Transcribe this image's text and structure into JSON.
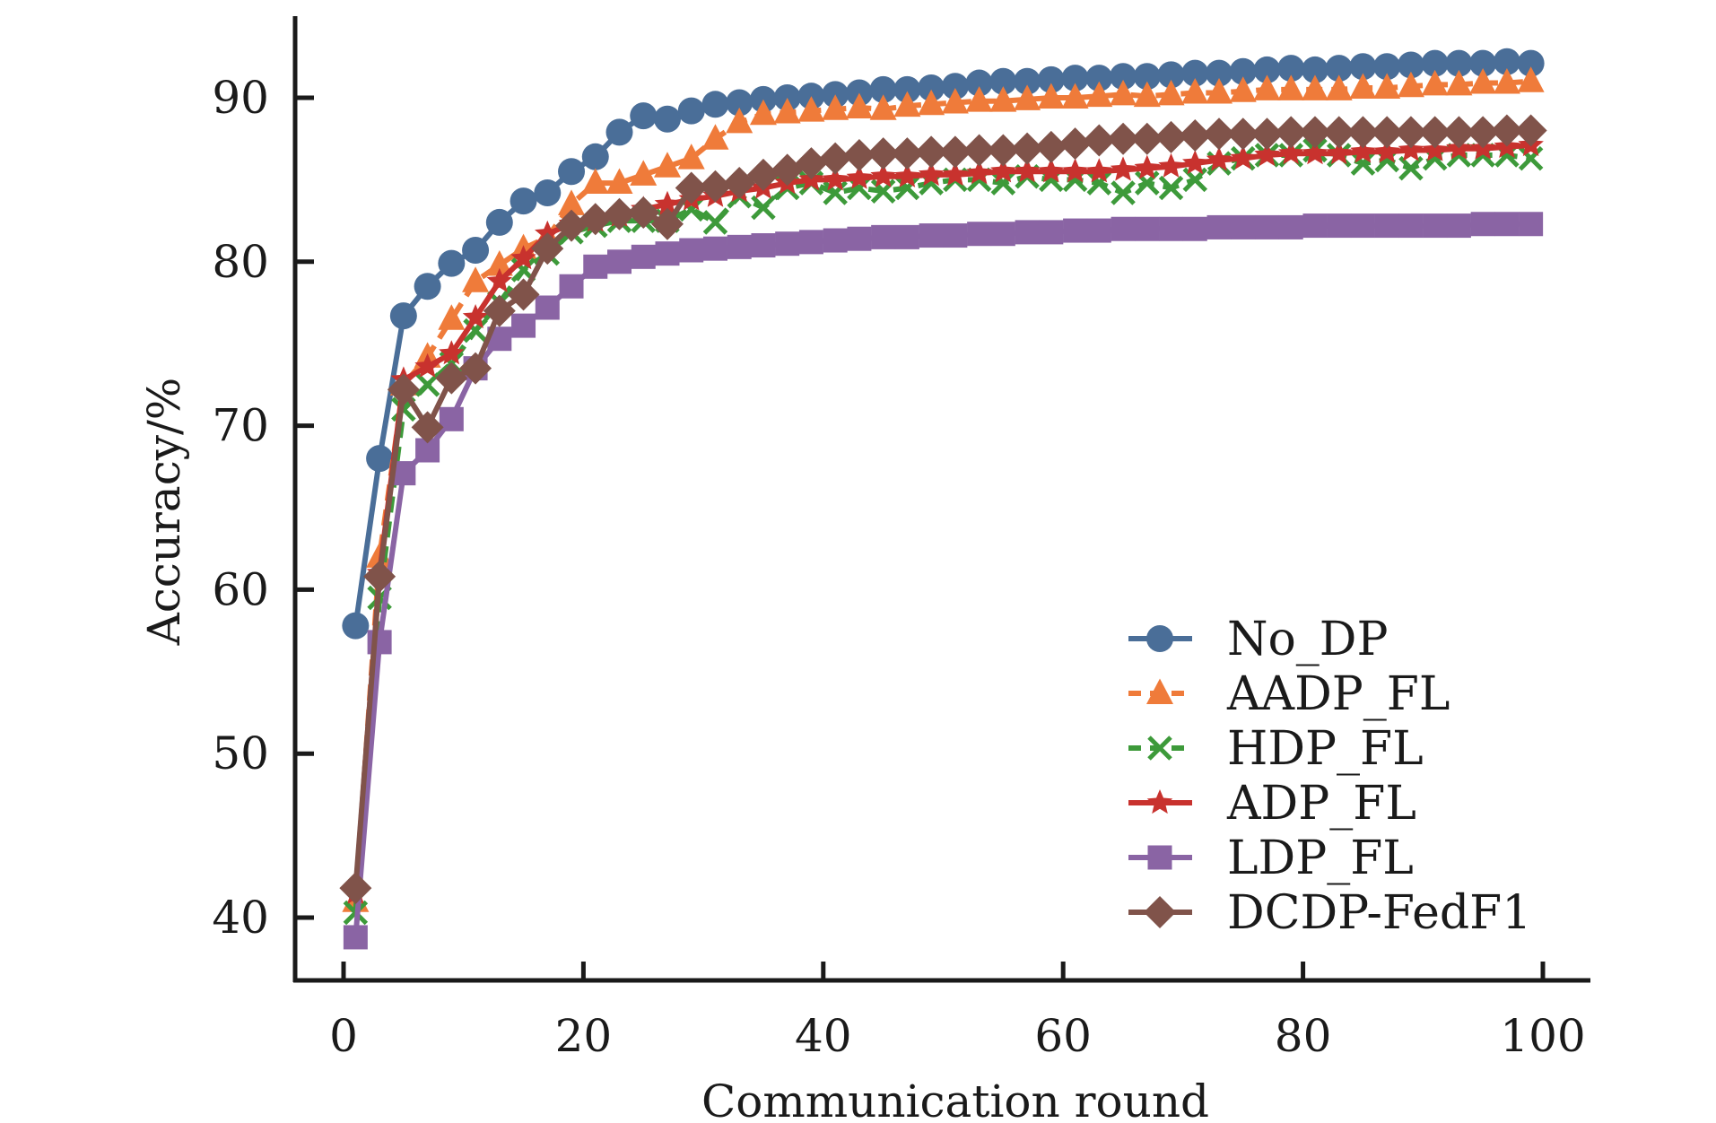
{
  "chart_data": {
    "type": "line",
    "title": "",
    "xlabel": "Communication round",
    "ylabel": "Accuracy/%",
    "xlim": [
      -4,
      104
    ],
    "ylim": [
      36,
      95
    ],
    "xticks": [
      0,
      20,
      40,
      60,
      80,
      100
    ],
    "yticks": [
      40,
      50,
      60,
      70,
      80,
      90
    ],
    "grid": false,
    "legend_position": "bottom-right",
    "x": [
      1,
      3,
      5,
      7,
      9,
      11,
      13,
      15,
      17,
      19,
      21,
      23,
      25,
      27,
      29,
      31,
      33,
      35,
      37,
      39,
      41,
      43,
      45,
      47,
      49,
      51,
      53,
      55,
      57,
      59,
      61,
      63,
      65,
      67,
      69,
      71,
      73,
      75,
      77,
      79,
      81,
      83,
      85,
      87,
      89,
      91,
      93,
      95,
      97,
      99
    ],
    "series": [
      {
        "name": "No_DP",
        "color": "#4a6e98",
        "marker": "circle",
        "dash": "solid",
        "values": [
          57.8,
          68.0,
          76.7,
          78.5,
          79.9,
          80.7,
          82.4,
          83.7,
          84.2,
          85.5,
          86.4,
          87.9,
          88.9,
          88.7,
          89.2,
          89.6,
          89.7,
          89.9,
          90.0,
          90.1,
          90.2,
          90.3,
          90.5,
          90.5,
          90.6,
          90.7,
          90.9,
          91.0,
          91.0,
          91.1,
          91.2,
          91.2,
          91.3,
          91.3,
          91.4,
          91.5,
          91.5,
          91.6,
          91.7,
          91.8,
          91.7,
          91.8,
          91.9,
          91.9,
          92.0,
          92.1,
          92.1,
          92.1,
          92.2,
          92.1
        ]
      },
      {
        "name": "AADP_FL",
        "color": "#ef7b3a",
        "marker": "triangle",
        "dash": "dashed",
        "values": [
          41.0,
          62.0,
          72.5,
          74.2,
          76.5,
          78.8,
          79.8,
          80.8,
          81.5,
          83.5,
          84.8,
          84.8,
          85.3,
          85.8,
          86.3,
          87.5,
          88.5,
          89.0,
          89.1,
          89.2,
          89.3,
          89.4,
          89.3,
          89.5,
          89.6,
          89.7,
          89.8,
          89.8,
          89.9,
          90.0,
          90.0,
          90.1,
          90.2,
          90.1,
          90.2,
          90.3,
          90.3,
          90.4,
          90.5,
          90.5,
          90.5,
          90.5,
          90.6,
          90.6,
          90.7,
          90.8,
          90.8,
          90.9,
          90.9,
          91.0
        ]
      },
      {
        "name": "HDP_FL",
        "color": "#3d9a3a",
        "marker": "x",
        "dash": "dashed",
        "values": [
          40.3,
          59.5,
          71.0,
          72.5,
          73.8,
          75.8,
          77.5,
          79.5,
          80.5,
          81.8,
          82.2,
          82.5,
          82.5,
          82.5,
          83.2,
          82.4,
          84.0,
          83.3,
          84.5,
          84.8,
          84.2,
          84.5,
          84.3,
          84.5,
          84.8,
          85.0,
          85.0,
          84.8,
          85.2,
          85.0,
          85.0,
          84.8,
          84.2,
          84.8,
          84.5,
          85.0,
          86.0,
          86.3,
          86.5,
          86.5,
          86.8,
          86.5,
          86.0,
          86.2,
          85.7,
          86.3,
          86.5,
          86.5,
          86.5,
          86.3
        ]
      },
      {
        "name": "ADP_FL",
        "color": "#c8322e",
        "marker": "star",
        "dash": "solid",
        "values": [
          41.5,
          61.0,
          72.8,
          73.6,
          74.4,
          76.6,
          78.8,
          80.2,
          81.7,
          82.3,
          82.5,
          82.8,
          83.2,
          83.5,
          83.8,
          84.0,
          84.3,
          84.5,
          84.8,
          85.0,
          85.0,
          85.1,
          85.2,
          85.2,
          85.3,
          85.3,
          85.4,
          85.5,
          85.5,
          85.5,
          85.5,
          85.5,
          85.6,
          85.7,
          85.8,
          86.0,
          86.2,
          86.3,
          86.5,
          86.6,
          86.6,
          86.6,
          86.7,
          86.7,
          86.8,
          86.8,
          86.9,
          86.9,
          87.0,
          87.1
        ]
      },
      {
        "name": "LDP_FL",
        "color": "#8a64a4",
        "marker": "square",
        "dash": "solid",
        "values": [
          38.8,
          56.8,
          67.1,
          68.5,
          70.4,
          73.5,
          75.3,
          76.1,
          77.2,
          78.5,
          79.7,
          80.0,
          80.3,
          80.5,
          80.7,
          80.8,
          80.9,
          81.0,
          81.1,
          81.2,
          81.3,
          81.4,
          81.5,
          81.5,
          81.6,
          81.6,
          81.7,
          81.7,
          81.8,
          81.8,
          81.9,
          81.9,
          82.0,
          82.0,
          82.0,
          82.0,
          82.1,
          82.1,
          82.1,
          82.1,
          82.2,
          82.2,
          82.2,
          82.2,
          82.2,
          82.2,
          82.2,
          82.3,
          82.3,
          82.3
        ]
      },
      {
        "name": "DCDP-FedF1",
        "color": "#80534a",
        "marker": "diamond",
        "dash": "solid",
        "values": [
          41.8,
          60.8,
          72.2,
          69.9,
          72.9,
          73.5,
          77.0,
          78.0,
          80.8,
          82.2,
          82.6,
          82.9,
          83.0,
          82.3,
          84.5,
          84.6,
          84.8,
          85.3,
          85.6,
          86.0,
          86.3,
          86.5,
          86.6,
          86.6,
          86.7,
          86.7,
          86.8,
          86.8,
          86.9,
          87.0,
          87.2,
          87.4,
          87.5,
          87.5,
          87.6,
          87.7,
          87.8,
          87.8,
          87.8,
          87.9,
          87.9,
          87.9,
          87.9,
          87.9,
          87.9,
          87.9,
          87.9,
          87.9,
          88.0,
          88.0
        ]
      }
    ]
  }
}
